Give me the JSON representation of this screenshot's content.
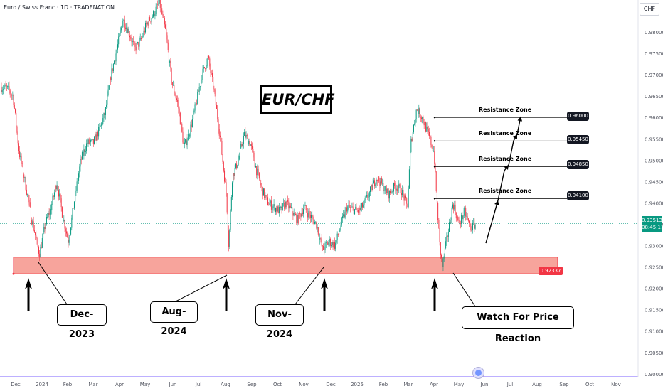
{
  "header": {
    "title": "Euro / Swiss Franc · 1D · TRADENATION",
    "currency": "CHF"
  },
  "annotation_title": "EUR/CHF",
  "chart_data": {
    "type": "candlestick",
    "symbol": "EUR/CHF",
    "timeframe": "1D",
    "ylim": [
      0.8995,
      0.9875
    ],
    "y_ticks": [
      "0.98000",
      "0.97500",
      "0.97000",
      "0.96500",
      "0.96000",
      "0.95500",
      "0.95000",
      "0.94500",
      "0.94000",
      "0.93500",
      "0.93000",
      "0.92500",
      "0.92000",
      "0.91500",
      "0.91000",
      "0.90500",
      "0.90000"
    ],
    "x_ticks": [
      "Dec",
      "2024",
      "Feb",
      "Mar",
      "Apr",
      "May",
      "Jun",
      "Jul",
      "Aug",
      "Sep",
      "Oct",
      "Nov",
      "Dec",
      "2025",
      "Feb",
      "Mar",
      "Apr",
      "May",
      "Jun",
      "Jul",
      "Aug",
      "Sep",
      "Oct",
      "Nov"
    ],
    "close_path": [
      {
        "date": "2023-11-20",
        "close": 0.967
      },
      {
        "date": "2023-11-28",
        "close": 0.965
      },
      {
        "date": "2023-12-05",
        "close": 0.952
      },
      {
        "date": "2023-12-12",
        "close": 0.945
      },
      {
        "date": "2023-12-19",
        "close": 0.937
      },
      {
        "date": "2023-12-29",
        "close": 0.928
      },
      {
        "date": "2024-01-05",
        "close": 0.935
      },
      {
        "date": "2024-01-12",
        "close": 0.939
      },
      {
        "date": "2024-01-19",
        "close": 0.945
      },
      {
        "date": "2024-01-26",
        "close": 0.937
      },
      {
        "date": "2024-02-02",
        "close": 0.931
      },
      {
        "date": "2024-02-09",
        "close": 0.941
      },
      {
        "date": "2024-02-16",
        "close": 0.95
      },
      {
        "date": "2024-02-23",
        "close": 0.954
      },
      {
        "date": "2024-03-01",
        "close": 0.954
      },
      {
        "date": "2024-03-08",
        "close": 0.957
      },
      {
        "date": "2024-03-15",
        "close": 0.961
      },
      {
        "date": "2024-03-22",
        "close": 0.97
      },
      {
        "date": "2024-03-29",
        "close": 0.976
      },
      {
        "date": "2024-04-05",
        "close": 0.983
      },
      {
        "date": "2024-04-12",
        "close": 0.98
      },
      {
        "date": "2024-04-19",
        "close": 0.976
      },
      {
        "date": "2024-04-26",
        "close": 0.978
      },
      {
        "date": "2024-05-03",
        "close": 0.982
      },
      {
        "date": "2024-05-10",
        "close": 0.984
      },
      {
        "date": "2024-05-17",
        "close": 0.987
      },
      {
        "date": "2024-05-24",
        "close": 0.98
      },
      {
        "date": "2024-05-31",
        "close": 0.968
      },
      {
        "date": "2024-06-07",
        "close": 0.963
      },
      {
        "date": "2024-06-14",
        "close": 0.953
      },
      {
        "date": "2024-06-21",
        "close": 0.957
      },
      {
        "date": "2024-06-28",
        "close": 0.963
      },
      {
        "date": "2024-07-05",
        "close": 0.97
      },
      {
        "date": "2024-07-12",
        "close": 0.974
      },
      {
        "date": "2024-07-19",
        "close": 0.966
      },
      {
        "date": "2024-07-26",
        "close": 0.955
      },
      {
        "date": "2024-08-02",
        "close": 0.942
      },
      {
        "date": "2024-08-05",
        "close": 0.93
      },
      {
        "date": "2024-08-09",
        "close": 0.946
      },
      {
        "date": "2024-08-16",
        "close": 0.95
      },
      {
        "date": "2024-08-23",
        "close": 0.956
      },
      {
        "date": "2024-08-30",
        "close": 0.954
      },
      {
        "date": "2024-09-06",
        "close": 0.948
      },
      {
        "date": "2024-09-13",
        "close": 0.943
      },
      {
        "date": "2024-09-20",
        "close": 0.94
      },
      {
        "date": "2024-09-27",
        "close": 0.939
      },
      {
        "date": "2024-10-04",
        "close": 0.938
      },
      {
        "date": "2024-10-11",
        "close": 0.94
      },
      {
        "date": "2024-10-18",
        "close": 0.938
      },
      {
        "date": "2024-10-25",
        "close": 0.936
      },
      {
        "date": "2024-11-01",
        "close": 0.939
      },
      {
        "date": "2024-11-08",
        "close": 0.937
      },
      {
        "date": "2024-11-15",
        "close": 0.935
      },
      {
        "date": "2024-11-22",
        "close": 0.929
      },
      {
        "date": "2024-11-29",
        "close": 0.931
      },
      {
        "date": "2024-12-06",
        "close": 0.93
      },
      {
        "date": "2024-12-13",
        "close": 0.935
      },
      {
        "date": "2024-12-20",
        "close": 0.939
      },
      {
        "date": "2025-01-03",
        "close": 0.938
      },
      {
        "date": "2025-01-10",
        "close": 0.94
      },
      {
        "date": "2025-01-17",
        "close": 0.943
      },
      {
        "date": "2025-01-24",
        "close": 0.946
      },
      {
        "date": "2025-01-31",
        "close": 0.944
      },
      {
        "date": "2025-02-07",
        "close": 0.942
      },
      {
        "date": "2025-02-14",
        "close": 0.944
      },
      {
        "date": "2025-02-21",
        "close": 0.943
      },
      {
        "date": "2025-02-28",
        "close": 0.939
      },
      {
        "date": "2025-03-04",
        "close": 0.954
      },
      {
        "date": "2025-03-11",
        "close": 0.962
      },
      {
        "date": "2025-03-18",
        "close": 0.96
      },
      {
        "date": "2025-03-25",
        "close": 0.956
      },
      {
        "date": "2025-04-01",
        "close": 0.952
      },
      {
        "date": "2025-04-04",
        "close": 0.942
      },
      {
        "date": "2025-04-08",
        "close": 0.93
      },
      {
        "date": "2025-04-11",
        "close": 0.925
      },
      {
        "date": "2025-04-17",
        "close": 0.932
      },
      {
        "date": "2025-04-24",
        "close": 0.94
      },
      {
        "date": "2025-05-01",
        "close": 0.935
      },
      {
        "date": "2025-05-08",
        "close": 0.938
      },
      {
        "date": "2025-05-15",
        "close": 0.934
      },
      {
        "date": "2025-05-21",
        "close": 0.935
      }
    ],
    "support_zone": {
      "low": 0.9234,
      "high": 0.9273,
      "label": "0.92337"
    },
    "resistance_zones": [
      {
        "label": "Resistance Zone",
        "price": 0.96,
        "tag": "0.96000"
      },
      {
        "label": "Resistance Zone",
        "price": 0.9545,
        "tag": "0.95450"
      },
      {
        "label": "Resistance Zone",
        "price": 0.9485,
        "tag": "0.94850"
      },
      {
        "label": "Resistance Zone",
        "price": 0.941,
        "tag": "0.94100"
      }
    ],
    "current_price": {
      "value": "0.93513",
      "countdown": "08:45:11",
      "color": "#089981"
    },
    "callouts": [
      "Dec-2023",
      "Aug-2024",
      "Nov-2024",
      "Watch For Price Reaction"
    ],
    "colors": {
      "up": "#089981",
      "down": "#f23645",
      "zone_fill": "#f7a49c",
      "zone_border": "#f23645"
    }
  }
}
